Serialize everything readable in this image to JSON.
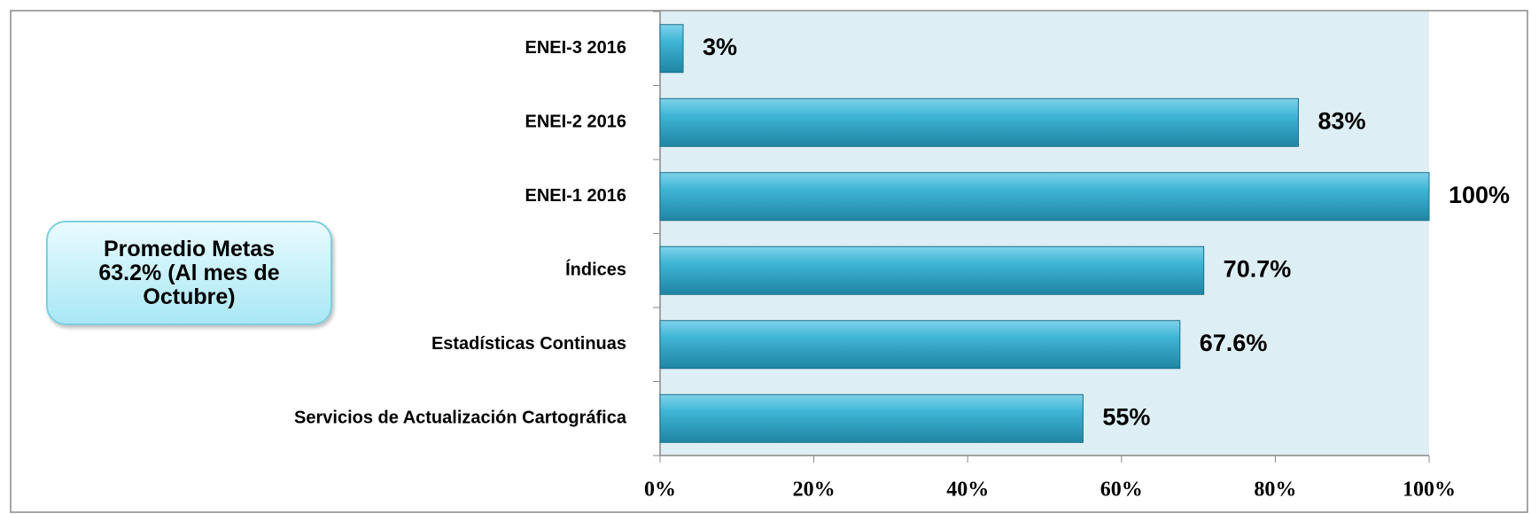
{
  "chart_data": {
    "type": "bar",
    "orientation": "horizontal",
    "categories": [
      "ENEI-3 2016",
      "ENEI-2 2016",
      "ENEI-1 2016",
      "Índices",
      "Estadísticas Continuas",
      "Servicios de Actualización Cartográfica"
    ],
    "values": [
      3,
      83,
      100,
      70.7,
      67.6,
      55
    ],
    "value_labels": [
      "3%",
      "83%",
      "100%",
      "70.7%",
      "67.6%",
      "55%"
    ],
    "color": "#3aaecf",
    "xlim": [
      0,
      100
    ],
    "xticks": [
      {
        "value": 0,
        "label": "0%"
      },
      {
        "value": 20,
        "label": "20%"
      },
      {
        "value": 40,
        "label": "40%"
      },
      {
        "value": 60,
        "label": "60%"
      },
      {
        "value": 80,
        "label": "80%"
      },
      {
        "value": 100,
        "label": "100%"
      }
    ],
    "grid": false,
    "annotation": "Promedio Metas 63.2% (Al mes de Octubre)"
  }
}
